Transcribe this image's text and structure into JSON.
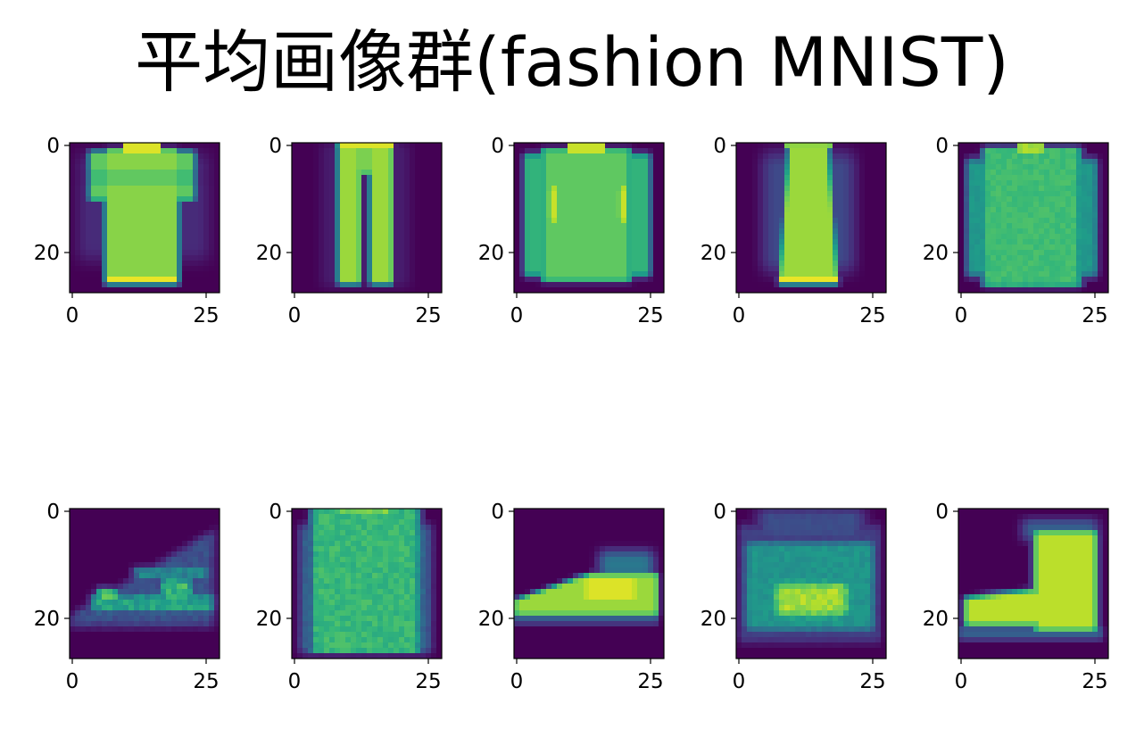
{
  "title": "平均画像群(fashion MNIST)",
  "chart_data": {
    "type": "heatmap",
    "title": "平均画像群(fashion MNIST)",
    "layout": "2 rows x 5 columns",
    "image_size": [
      28,
      28
    ],
    "colormap": "viridis",
    "x_ticks": [
      "0",
      "25"
    ],
    "y_ticks": [
      "0",
      "20"
    ],
    "panels": [
      {
        "index": 0,
        "shape": "tshirt"
      },
      {
        "index": 1,
        "shape": "trouser"
      },
      {
        "index": 2,
        "shape": "pullover"
      },
      {
        "index": 3,
        "shape": "dress"
      },
      {
        "index": 4,
        "shape": "coat"
      },
      {
        "index": 5,
        "shape": "sandal"
      },
      {
        "index": 6,
        "shape": "shirt"
      },
      {
        "index": 7,
        "shape": "sneaker"
      },
      {
        "index": 8,
        "shape": "bag"
      },
      {
        "index": 9,
        "shape": "ankleboot"
      }
    ]
  }
}
